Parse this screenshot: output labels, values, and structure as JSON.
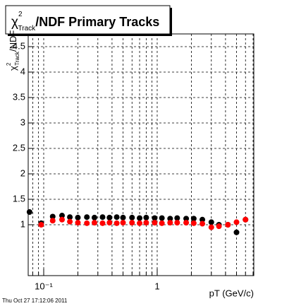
{
  "chart_data": {
    "type": "scatter",
    "title": {
      "symbol": "χ",
      "sup": "2",
      "sub": "Track",
      "rest": "/NDF  Primary Tracks"
    },
    "y_label": {
      "symbol": "χ",
      "sup": "2",
      "sub": "Track",
      "rest": "/NDF"
    },
    "x_label": "pT (GeV/c)",
    "timestamp": "Thu Oct 27 17:12:06 2011",
    "xlog": true,
    "xlim": [
      0.073,
      7.1
    ],
    "ylim": [
      0,
      4.75
    ],
    "xticks": [
      {
        "value": 0.1,
        "label": "10⁻¹"
      },
      1
    ],
    "xminor": [
      0.08,
      0.09,
      0.2,
      0.3,
      0.4,
      0.5,
      0.6,
      0.7,
      0.8,
      0.9,
      2,
      3,
      4,
      5,
      6,
      7
    ],
    "yticks": [
      1,
      1.5,
      2,
      2.5,
      3,
      3.5,
      4,
      4.5
    ],
    "grid": true,
    "series": [
      {
        "name": "black",
        "color": "#000000",
        "x": [
          0.075,
          0.095,
          0.12,
          0.145,
          0.17,
          0.2,
          0.24,
          0.28,
          0.33,
          0.38,
          0.44,
          0.5,
          0.6,
          0.7,
          0.8,
          0.95,
          1.1,
          1.3,
          1.5,
          1.8,
          2.1,
          2.5,
          3.0,
          3.5,
          4.2,
          5.0,
          6.0
        ],
        "values": [
          1.25,
          1.03,
          1.16,
          1.18,
          1.15,
          1.14,
          1.15,
          1.14,
          1.15,
          1.14,
          1.15,
          1.14,
          1.14,
          1.13,
          1.14,
          1.13,
          1.13,
          1.12,
          1.13,
          1.12,
          1.12,
          1.1,
          1.05,
          1.0,
          1.0,
          0.85,
          1.1
        ]
      },
      {
        "name": "red",
        "color": "#ff0000",
        "x": [
          0.095,
          0.12,
          0.145,
          0.17,
          0.2,
          0.24,
          0.28,
          0.33,
          0.38,
          0.44,
          0.5,
          0.6,
          0.7,
          0.8,
          0.95,
          1.1,
          1.3,
          1.5,
          1.8,
          2.1,
          2.5,
          3.0,
          3.5,
          4.2,
          5.0,
          6.0
        ],
        "values": [
          1.0,
          1.08,
          1.1,
          1.06,
          1.04,
          1.03,
          1.04,
          1.03,
          1.04,
          1.03,
          1.04,
          1.04,
          1.03,
          1.04,
          1.04,
          1.03,
          1.04,
          1.04,
          1.04,
          1.03,
          1.02,
          0.95,
          0.97,
          1.0,
          1.05,
          1.1
        ]
      }
    ]
  }
}
